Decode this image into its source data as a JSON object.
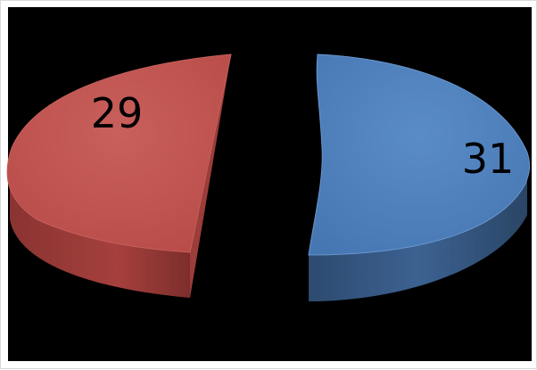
{
  "chart_data": {
    "type": "pie",
    "variant": "3d-exploded",
    "slices": [
      {
        "label": "31",
        "value": 31,
        "color": "#4f81bd"
      },
      {
        "label": "29",
        "value": 29,
        "color": "#c0504d"
      }
    ],
    "legend": "none",
    "background": "#000000"
  }
}
